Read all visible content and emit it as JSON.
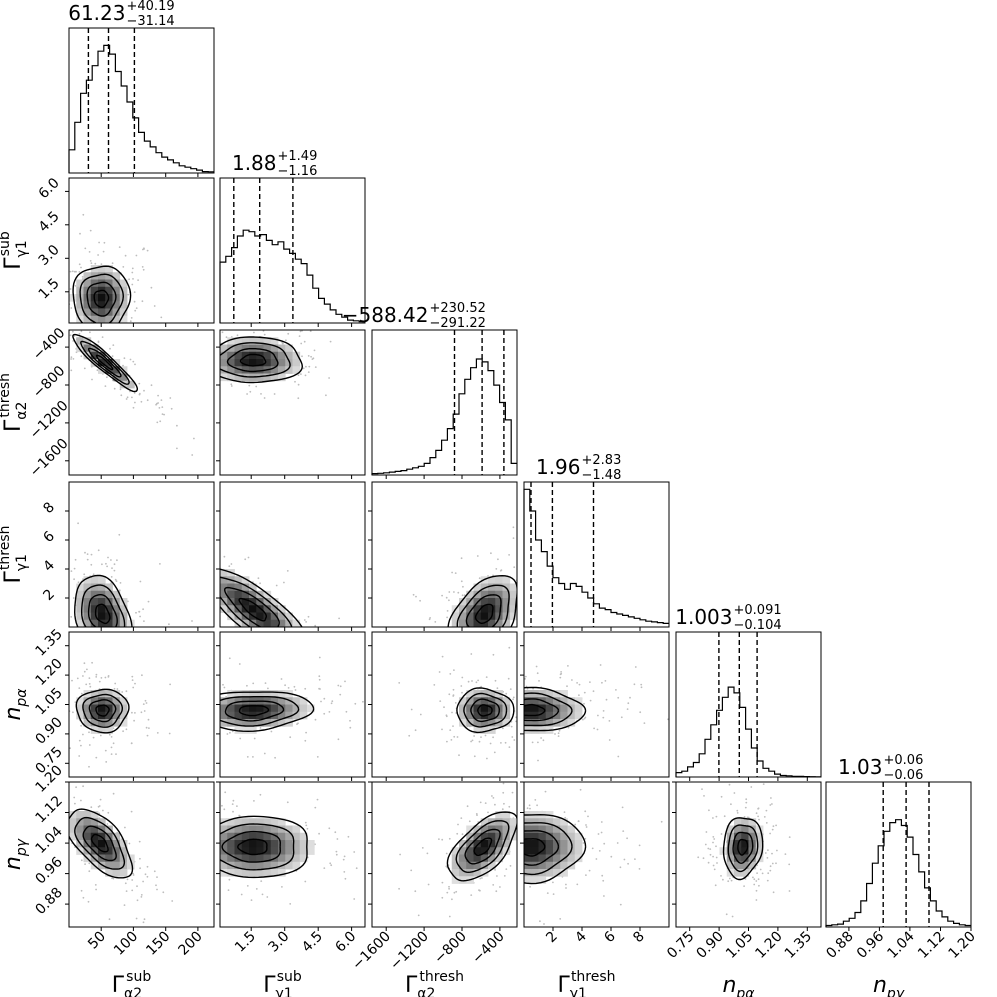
{
  "chart_data": {
    "type": "corner",
    "parameters": [
      {
        "name": "Γ",
        "sup": "sub",
        "sub": "α2",
        "range": [
          0,
          225
        ],
        "ticks": [
          50,
          100,
          150,
          200
        ],
        "tick_labels": [
          "50",
          "100",
          "150",
          "200"
        ],
        "quantiles": [
          30.09,
          61.23,
          101.42
        ],
        "title": {
          "median": "61.23",
          "plus": "+40.19",
          "minus": "−31.14"
        },
        "hist": [
          0.16,
          0.35,
          0.55,
          0.64,
          0.74,
          0.84,
          0.88,
          0.82,
          0.7,
          0.6,
          0.49,
          0.38,
          0.28,
          0.22,
          0.18,
          0.14,
          0.11,
          0.09,
          0.07,
          0.05,
          0.04,
          0.03,
          0.02,
          0.01,
          0.008
        ]
      },
      {
        "name": "Γ",
        "sup": "sub",
        "sub": "γ1",
        "range": [
          0.1,
          6.6
        ],
        "ticks": [
          1.5,
          3.0,
          4.5,
          6.0
        ],
        "tick_labels": [
          "1.5",
          "3.0",
          "4.5",
          "6.0"
        ],
        "quantiles": [
          0.72,
          1.88,
          3.37
        ],
        "title": {
          "median": "1.88",
          "plus": "+1.49",
          "minus": "−1.16"
        },
        "hist": [
          0.42,
          0.46,
          0.52,
          0.6,
          0.64,
          0.63,
          0.6,
          0.61,
          0.57,
          0.54,
          0.56,
          0.51,
          0.48,
          0.44,
          0.41,
          0.33,
          0.24,
          0.17,
          0.13,
          0.09,
          0.06,
          0.04,
          0.02,
          0.015,
          0.01
        ]
      },
      {
        "name": "Γ",
        "sup": "thresh",
        "sub": "α2",
        "range": [
          -1750,
          -220
        ],
        "ticks": [
          -1600,
          -1200,
          -800,
          -400
        ],
        "tick_labels": [
          "−1600",
          "−1200",
          "−800",
          "−400"
        ],
        "quantiles": [
          -879.64,
          -588.42,
          -357.9
        ],
        "title": {
          "median": "−588.42",
          "plus": "+230.52",
          "minus": "−291.22"
        },
        "hist": [
          0.01,
          0.012,
          0.015,
          0.02,
          0.025,
          0.03,
          0.04,
          0.05,
          0.06,
          0.08,
          0.12,
          0.17,
          0.24,
          0.32,
          0.42,
          0.56,
          0.66,
          0.74,
          0.8,
          0.78,
          0.72,
          0.62,
          0.5,
          0.38,
          0.08
        ]
      },
      {
        "name": "Γ",
        "sup": "thresh",
        "sub": "γ1",
        "range": [
          0,
          10
        ],
        "ticks": [
          2,
          4,
          6,
          8
        ],
        "tick_labels": [
          "2",
          "4",
          "6",
          "8"
        ],
        "quantiles": [
          0.48,
          1.96,
          4.79
        ],
        "title": {
          "median": "1.96",
          "plus": "+2.83",
          "minus": "−1.48"
        },
        "hist": [
          0.95,
          0.8,
          0.6,
          0.52,
          0.42,
          0.34,
          0.3,
          0.26,
          0.3,
          0.28,
          0.24,
          0.2,
          0.16,
          0.13,
          0.12,
          0.1,
          0.09,
          0.08,
          0.07,
          0.06,
          0.05,
          0.04,
          0.035,
          0.03,
          0.025
        ]
      },
      {
        "name": "n",
        "sup": "",
        "sub": "pα",
        "range": [
          0.68,
          1.42
        ],
        "ticks": [
          0.75,
          0.9,
          1.05,
          1.2,
          1.35
        ],
        "tick_labels": [
          "0.75",
          "0.90",
          "1.05",
          "1.20",
          "1.35"
        ],
        "quantiles": [
          0.899,
          1.003,
          1.094
        ],
        "title": {
          "median": "1.003",
          "plus": "+0.091",
          "minus": "−0.104"
        },
        "hist": [
          0.03,
          0.04,
          0.07,
          0.1,
          0.16,
          0.26,
          0.36,
          0.46,
          0.55,
          0.62,
          0.58,
          0.48,
          0.33,
          0.2,
          0.11,
          0.06,
          0.04,
          0.02,
          0.01,
          0.008,
          0.005,
          0.004,
          0.003,
          0.002,
          0.001
        ]
      },
      {
        "name": "n",
        "sup": "",
        "sub": "pγ",
        "range": [
          0.82,
          1.2
        ],
        "ticks": [
          0.88,
          0.96,
          1.04,
          1.12,
          1.2
        ],
        "tick_labels": [
          "0.88",
          "0.96",
          "1.04",
          "1.12",
          "1.20"
        ],
        "quantiles": [
          0.97,
          1.03,
          1.09
        ],
        "title": {
          "median": "1.03",
          "plus": "+0.06",
          "minus": "−0.06"
        },
        "hist": [
          0.01,
          0.015,
          0.02,
          0.04,
          0.06,
          0.1,
          0.18,
          0.3,
          0.44,
          0.56,
          0.66,
          0.72,
          0.74,
          0.7,
          0.62,
          0.5,
          0.38,
          0.27,
          0.18,
          0.11,
          0.07,
          0.04,
          0.025,
          0.015,
          0.01
        ]
      }
    ],
    "density_pairs": [
      {
        "x": 0,
        "y": 1,
        "mean": [
          50,
          1.2
        ],
        "sd": [
          22,
          0.75
        ],
        "rho": 0.0
      },
      {
        "x": 0,
        "y": 2,
        "mean": [
          55,
          -560
        ],
        "sd": [
          25,
          150
        ],
        "rho": -0.93
      },
      {
        "x": 1,
        "y": 2,
        "mean": [
          1.6,
          -540
        ],
        "sd": [
          1.1,
          120
        ],
        "rho": 0.0
      },
      {
        "x": 0,
        "y": 3,
        "mean": [
          52,
          0.9
        ],
        "sd": [
          22,
          1.3
        ],
        "rho": -0.3
      },
      {
        "x": 1,
        "y": 3,
        "mean": [
          1.6,
          1.2
        ],
        "sd": [
          1.2,
          1.5
        ],
        "rho": -0.8
      },
      {
        "x": 2,
        "y": 3,
        "mean": [
          -560,
          0.9
        ],
        "sd": [
          180,
          1.3
        ],
        "rho": 0.4
      },
      {
        "x": 0,
        "y": 4,
        "mean": [
          52,
          1.02
        ],
        "sd": [
          20,
          0.055
        ],
        "rho": 0.0
      },
      {
        "x": 1,
        "y": 4,
        "mean": [
          1.6,
          1.02
        ],
        "sd": [
          1.3,
          0.05
        ],
        "rho": 0.1
      },
      {
        "x": 2,
        "y": 4,
        "mean": [
          -560,
          1.02
        ],
        "sd": [
          150,
          0.055
        ],
        "rho": 0.0
      },
      {
        "x": 3,
        "y": 4,
        "mean": [
          0.5,
          1.02
        ],
        "sd": [
          1.8,
          0.055
        ],
        "rho": 0.0
      },
      {
        "x": 0,
        "y": 5,
        "mean": [
          48,
          1.04
        ],
        "sd": [
          25,
          0.045
        ],
        "rho": -0.6
      },
      {
        "x": 1,
        "y": 5,
        "mean": [
          1.6,
          1.03
        ],
        "sd": [
          1.3,
          0.04
        ],
        "rho": 0.0
      },
      {
        "x": 2,
        "y": 5,
        "mean": [
          -580,
          1.03
        ],
        "sd": [
          180,
          0.045
        ],
        "rho": 0.6
      },
      {
        "x": 3,
        "y": 5,
        "mean": [
          0.5,
          1.03
        ],
        "sd": [
          1.8,
          0.045
        ],
        "rho": 0.0
      },
      {
        "x": 4,
        "y": 5,
        "mean": [
          1.02,
          1.03
        ],
        "sd": [
          0.05,
          0.04
        ],
        "rho": 0.1
      }
    ],
    "contour_levels": [
      0.5,
      1.0,
      1.5,
      2.0
    ],
    "colors": {
      "ink": "#000000",
      "density_dark": "#111111",
      "points": "#bdbdbd"
    }
  }
}
